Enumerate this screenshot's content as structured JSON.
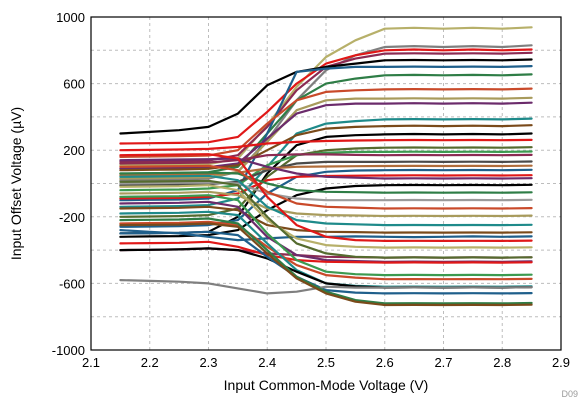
{
  "chart_data": {
    "type": "line",
    "xlabel": "Input Common-Mode Voltage (V)",
    "ylabel": "Input Offset Voltage (µV)",
    "xlim": [
      2.1,
      2.9
    ],
    "ylim": [
      -1000,
      1000
    ],
    "xticks": [
      "2.1",
      "2.2",
      "2.3",
      "2.4",
      "2.5",
      "2.6",
      "2.7",
      "2.8",
      "2.9"
    ],
    "yticks": [
      "1000",
      "600",
      "200",
      "-200",
      "-600",
      "-1000"
    ],
    "grid": true,
    "legend": "none",
    "figure_id": "D09",
    "x": [
      2.15,
      2.2,
      2.25,
      2.3,
      2.35,
      2.4,
      2.45,
      2.5,
      2.55,
      2.6,
      2.65,
      2.7,
      2.75,
      2.8,
      2.85
    ],
    "series": [
      {
        "color": "#b7b06a",
        "values": [
          110,
          112,
          114,
          116,
          150,
          350,
          580,
          760,
          860,
          930,
          935,
          930,
          935,
          930,
          938
        ]
      },
      {
        "color": "#7f7f7f",
        "values": [
          20,
          22,
          24,
          30,
          70,
          260,
          500,
          680,
          770,
          820,
          825,
          820,
          825,
          820,
          830
        ]
      },
      {
        "color": "#e01818",
        "values": [
          240,
          242,
          244,
          248,
          280,
          430,
          600,
          720,
          770,
          800,
          805,
          800,
          805,
          800,
          805
        ]
      },
      {
        "color": "#8b2a52",
        "values": [
          130,
          132,
          134,
          138,
          170,
          340,
          560,
          700,
          750,
          780,
          782,
          780,
          782,
          780,
          785
        ]
      },
      {
        "color": "#000000",
        "values": [
          300,
          310,
          320,
          340,
          420,
          590,
          670,
          700,
          720,
          740,
          742,
          740,
          742,
          740,
          745
        ]
      },
      {
        "color": "#2e7d46",
        "values": [
          60,
          62,
          64,
          68,
          100,
          300,
          500,
          600,
          630,
          650,
          652,
          650,
          652,
          650,
          655
        ]
      },
      {
        "color": "#1f5f8b",
        "values": [
          -100,
          -98,
          -96,
          -90,
          -40,
          300,
          670,
          690,
          700,
          700,
          702,
          700,
          702,
          700,
          705
        ]
      },
      {
        "color": "#c94a2a",
        "values": [
          160,
          162,
          164,
          168,
          200,
          360,
          500,
          550,
          560,
          565,
          567,
          565,
          567,
          565,
          570
        ]
      },
      {
        "color": "#a89b5c",
        "values": [
          30,
          32,
          34,
          38,
          70,
          250,
          440,
          500,
          510,
          510,
          512,
          510,
          512,
          510,
          515
        ]
      },
      {
        "color": "#6b2b6b",
        "values": [
          90,
          92,
          94,
          98,
          120,
          270,
          420,
          470,
          480,
          480,
          482,
          480,
          482,
          480,
          485
        ]
      },
      {
        "color": "#1e8a8a",
        "values": [
          -140,
          -138,
          -136,
          -130,
          -90,
          100,
          300,
          360,
          375,
          385,
          387,
          385,
          387,
          385,
          390
        ]
      },
      {
        "color": "#7a4a1a",
        "values": [
          80,
          82,
          84,
          88,
          110,
          200,
          290,
          330,
          340,
          345,
          347,
          345,
          347,
          345,
          350
        ]
      },
      {
        "color": "#000000",
        "values": [
          -300,
          -298,
          -296,
          -290,
          -200,
          60,
          230,
          280,
          290,
          295,
          297,
          295,
          297,
          295,
          300
        ]
      },
      {
        "color": "#e01818",
        "values": [
          200,
          202,
          204,
          208,
          220,
          240,
          250,
          255,
          258,
          260,
          261,
          260,
          261,
          260,
          262
        ]
      },
      {
        "color": "#556b2f",
        "values": [
          -200,
          -198,
          -196,
          -190,
          -150,
          40,
          170,
          200,
          210,
          215,
          216,
          215,
          216,
          215,
          218
        ]
      },
      {
        "color": "#3c9a50",
        "values": [
          -40,
          -38,
          -36,
          -30,
          -10,
          110,
          170,
          185,
          190,
          190,
          191,
          190,
          191,
          190,
          192
        ]
      },
      {
        "color": "#8b2a52",
        "values": [
          120,
          122,
          124,
          126,
          140,
          170,
          175,
          175,
          172,
          170,
          171,
          170,
          171,
          170,
          172
        ]
      },
      {
        "color": "#4a4a4a",
        "values": [
          -10,
          -8,
          -6,
          -4,
          10,
          80,
          120,
          130,
          130,
          130,
          131,
          130,
          131,
          130,
          132
        ]
      },
      {
        "color": "#b06c3a",
        "values": [
          50,
          52,
          54,
          56,
          65,
          90,
          100,
          102,
          104,
          105,
          106,
          105,
          106,
          105,
          107
        ]
      },
      {
        "color": "#1f5f8b",
        "values": [
          -260,
          -258,
          -256,
          -250,
          -220,
          -60,
          40,
          70,
          78,
          80,
          81,
          80,
          81,
          80,
          82
        ]
      },
      {
        "color": "#e01818",
        "values": [
          -90,
          -88,
          -86,
          -80,
          -60,
          20,
          40,
          45,
          47,
          48,
          49,
          48,
          49,
          48,
          50
        ]
      },
      {
        "color": "#6b2b6b",
        "values": [
          140,
          142,
          144,
          146,
          150,
          100,
          60,
          40,
          35,
          30,
          31,
          30,
          31,
          30,
          32
        ]
      },
      {
        "color": "#000000",
        "values": [
          -320,
          -318,
          -316,
          -310,
          -280,
          -160,
          -70,
          -30,
          -15,
          -10,
          -9,
          -10,
          -9,
          -10,
          -8
        ]
      },
      {
        "color": "#2e7d46",
        "values": [
          60,
          62,
          64,
          66,
          60,
          0,
          -40,
          -50,
          -52,
          -55,
          -54,
          -55,
          -54,
          -55,
          -53
        ]
      },
      {
        "color": "#9a9a9a",
        "values": [
          0,
          2,
          4,
          6,
          0,
          -60,
          -90,
          -100,
          -100,
          -100,
          -99,
          -100,
          -99,
          -100,
          -98
        ]
      },
      {
        "color": "#c94a2a",
        "values": [
          100,
          102,
          104,
          106,
          80,
          -50,
          -120,
          -140,
          -145,
          -150,
          -149,
          -150,
          -149,
          -150,
          -148
        ]
      },
      {
        "color": "#a89b5c",
        "values": [
          -60,
          -58,
          -56,
          -50,
          -70,
          -150,
          -180,
          -190,
          -192,
          -195,
          -194,
          -195,
          -194,
          -195,
          -193
        ]
      },
      {
        "color": "#1e8a8a",
        "values": [
          40,
          42,
          44,
          46,
          20,
          -140,
          -220,
          -240,
          -245,
          -250,
          -249,
          -250,
          -249,
          -250,
          -248
        ]
      },
      {
        "color": "#7a4a1a",
        "values": [
          -150,
          -148,
          -146,
          -140,
          -160,
          -250,
          -280,
          -290,
          -292,
          -295,
          -294,
          -295,
          -294,
          -295,
          -293
        ]
      },
      {
        "color": "#1f5f8b",
        "values": [
          -280,
          -290,
          -300,
          -320,
          -340,
          -330,
          -320,
          -320,
          -318,
          -320,
          -322,
          -320,
          -318,
          -320,
          -318
        ]
      },
      {
        "color": "#e01818",
        "values": [
          170,
          172,
          174,
          176,
          150,
          -80,
          -250,
          -320,
          -340,
          -345,
          -344,
          -345,
          -344,
          -345,
          -343
        ]
      },
      {
        "color": "#b7b06a",
        "values": [
          -20,
          -18,
          -16,
          -10,
          -40,
          -220,
          -330,
          -370,
          -380,
          -385,
          -384,
          -385,
          -384,
          -385,
          -383
        ]
      },
      {
        "color": "#8b2a52",
        "values": [
          -400,
          -398,
          -396,
          -390,
          -400,
          -420,
          -430,
          -440,
          -442,
          -445,
          -444,
          -445,
          -444,
          -445,
          -443
        ]
      },
      {
        "color": "#556b2f",
        "values": [
          10,
          12,
          14,
          16,
          -10,
          -200,
          -360,
          -420,
          -440,
          -445,
          -444,
          -445,
          -444,
          -445,
          -443
        ]
      },
      {
        "color": "#6b2b6b",
        "values": [
          -120,
          -118,
          -116,
          -110,
          -140,
          -320,
          -430,
          -460,
          -466,
          -470,
          -469,
          -470,
          -469,
          -470,
          -468
        ]
      },
      {
        "color": "#e01818",
        "values": [
          -360,
          -358,
          -356,
          -350,
          -380,
          -430,
          -460,
          -470,
          -472,
          -475,
          -474,
          -475,
          -474,
          -475,
          -473
        ]
      },
      {
        "color": "#3c9a50",
        "values": [
          -80,
          -78,
          -76,
          -70,
          -100,
          -300,
          -460,
          -530,
          -545,
          -550,
          -549,
          -550,
          -549,
          -550,
          -548
        ]
      },
      {
        "color": "#c94a2a",
        "values": [
          -240,
          -238,
          -236,
          -230,
          -250,
          -380,
          -490,
          -550,
          -565,
          -575,
          -574,
          -575,
          -574,
          -575,
          -573
        ]
      },
      {
        "color": "#1e8a8a",
        "values": [
          -180,
          -178,
          -176,
          -170,
          -190,
          -360,
          -520,
          -600,
          -615,
          -620,
          -619,
          -620,
          -619,
          -620,
          -618
        ]
      },
      {
        "color": "#000000",
        "values": [
          -400,
          -398,
          -396,
          -390,
          -400,
          -450,
          -530,
          -600,
          -618,
          -625,
          -624,
          -625,
          -624,
          -625,
          -623
        ]
      },
      {
        "color": "#1f5f8b",
        "values": [
          -300,
          -298,
          -296,
          -290,
          -310,
          -440,
          -560,
          -640,
          -655,
          -660,
          -659,
          -660,
          -659,
          -660,
          -658
        ]
      },
      {
        "color": "#7f7f7f",
        "values": [
          -580,
          -585,
          -590,
          -600,
          -630,
          -660,
          -650,
          -620,
          -625,
          -625,
          -624,
          -625,
          -624,
          -625,
          -623
        ]
      },
      {
        "color": "#2e7d46",
        "values": [
          -220,
          -218,
          -216,
          -210,
          -240,
          -400,
          -560,
          -650,
          -700,
          -720,
          -719,
          -720,
          -719,
          -720,
          -718
        ]
      },
      {
        "color": "#7a4a1a",
        "values": [
          -250,
          -248,
          -246,
          -240,
          -260,
          -420,
          -570,
          -660,
          -710,
          -730,
          -729,
          -730,
          -729,
          -730,
          -728
        ]
      }
    ]
  }
}
